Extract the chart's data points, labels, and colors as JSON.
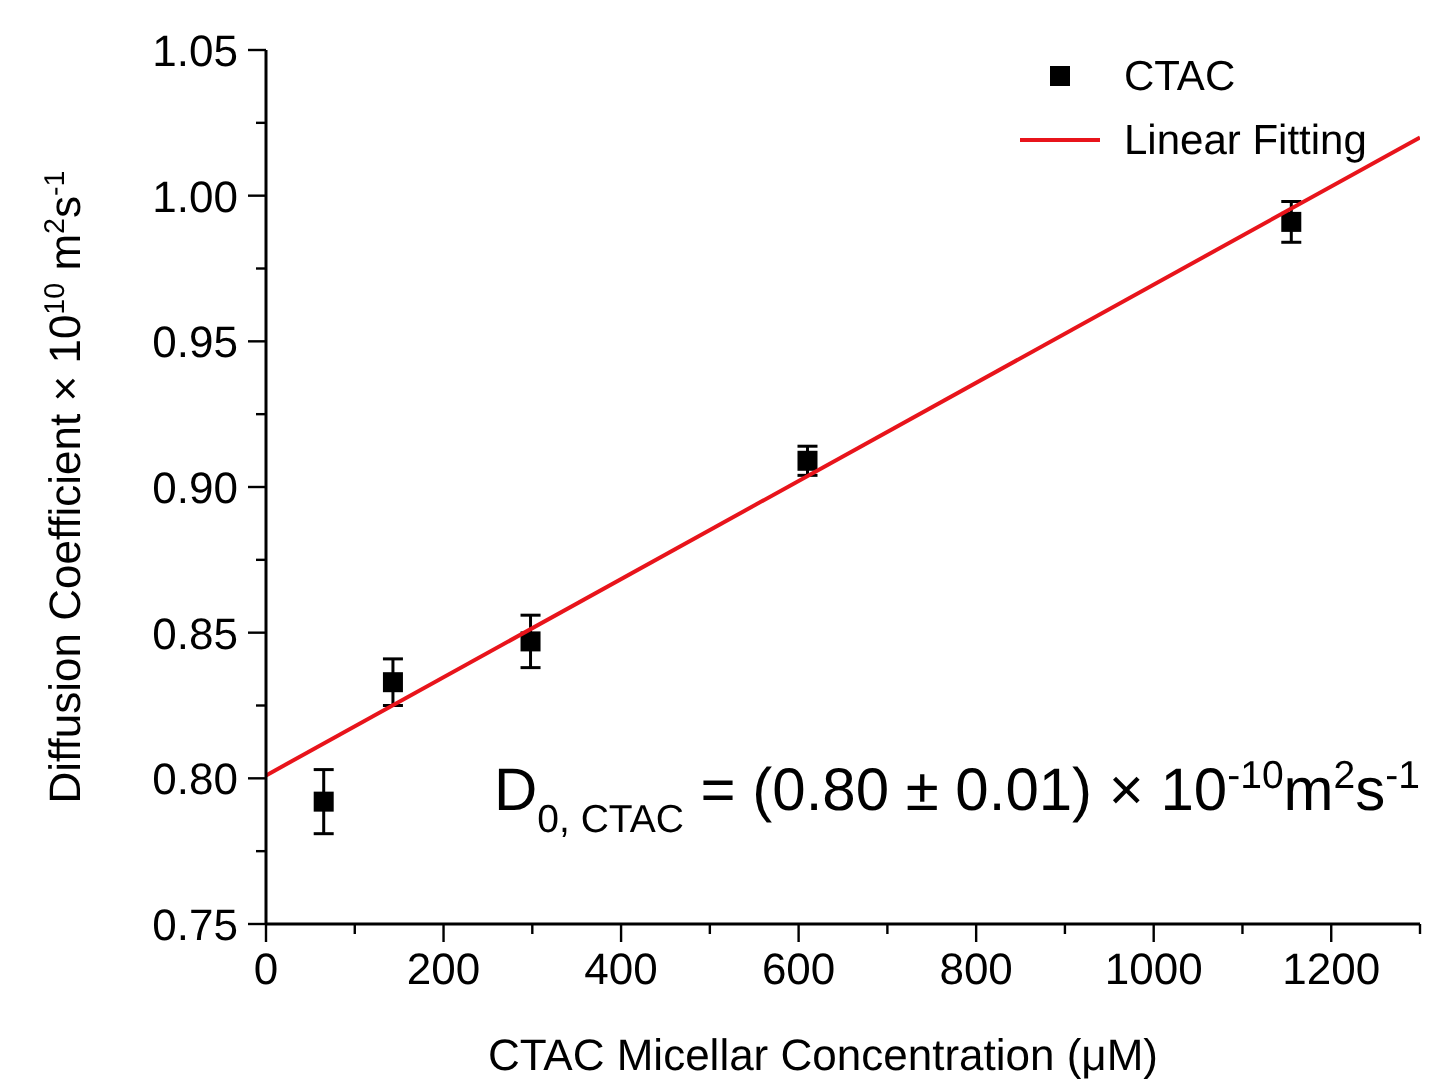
{
  "chart_data": {
    "type": "scatter",
    "xlabel": "CTAC Micellar Concentration (μM)",
    "ylabel": "Diffusion Coefficient × 10$^{10}$ m$^{2}$s$^{-1}$",
    "xlim": [
      0,
      1300
    ],
    "ylim": [
      0.75,
      1.05
    ],
    "xticks": [
      0,
      {
        "value": 100,
        "label": null
      },
      200,
      {
        "value": 300,
        "label": null
      },
      400,
      {
        "value": 500,
        "label": null
      },
      600,
      {
        "value": 700,
        "label": null
      },
      800,
      {
        "value": 900,
        "label": null
      },
      1000,
      {
        "value": 1100,
        "label": null
      },
      1200,
      {
        "value": 1300,
        "label": null
      }
    ],
    "yticks": [
      0.75,
      {
        "value": 0.775,
        "label": null
      },
      "0.80",
      {
        "value": 0.825,
        "label": null
      },
      0.85,
      {
        "value": 0.875,
        "label": null
      },
      "0.90",
      {
        "value": 0.925,
        "label": null
      },
      0.95,
      {
        "value": 0.975,
        "label": null
      },
      "1.00",
      {
        "value": 1.025,
        "label": null
      },
      1.05
    ],
    "series": [
      {
        "name": "CTAC",
        "color": "#000000",
        "marker": "square",
        "x": [
          65,
          143,
          298,
          610,
          1155
        ],
        "values": [
          0.792,
          0.833,
          0.847,
          0.909,
          0.991
        ],
        "errors": [
          0.011,
          0.008,
          0.009,
          0.005,
          0.007
        ]
      },
      {
        "name": "Linear Fitting",
        "type": "line",
        "color": "#e8141b",
        "marker": "none",
        "x": [
          0,
          1300
        ],
        "values": [
          0.801,
          1.02
        ]
      }
    ],
    "legend": "top right",
    "grid": false,
    "annotations": [
      "D$_{0, CTAC}$ = (0.80 ± 0.01) × 10$^{-10}$m$^{2}$s$^{-1}$"
    ]
  }
}
